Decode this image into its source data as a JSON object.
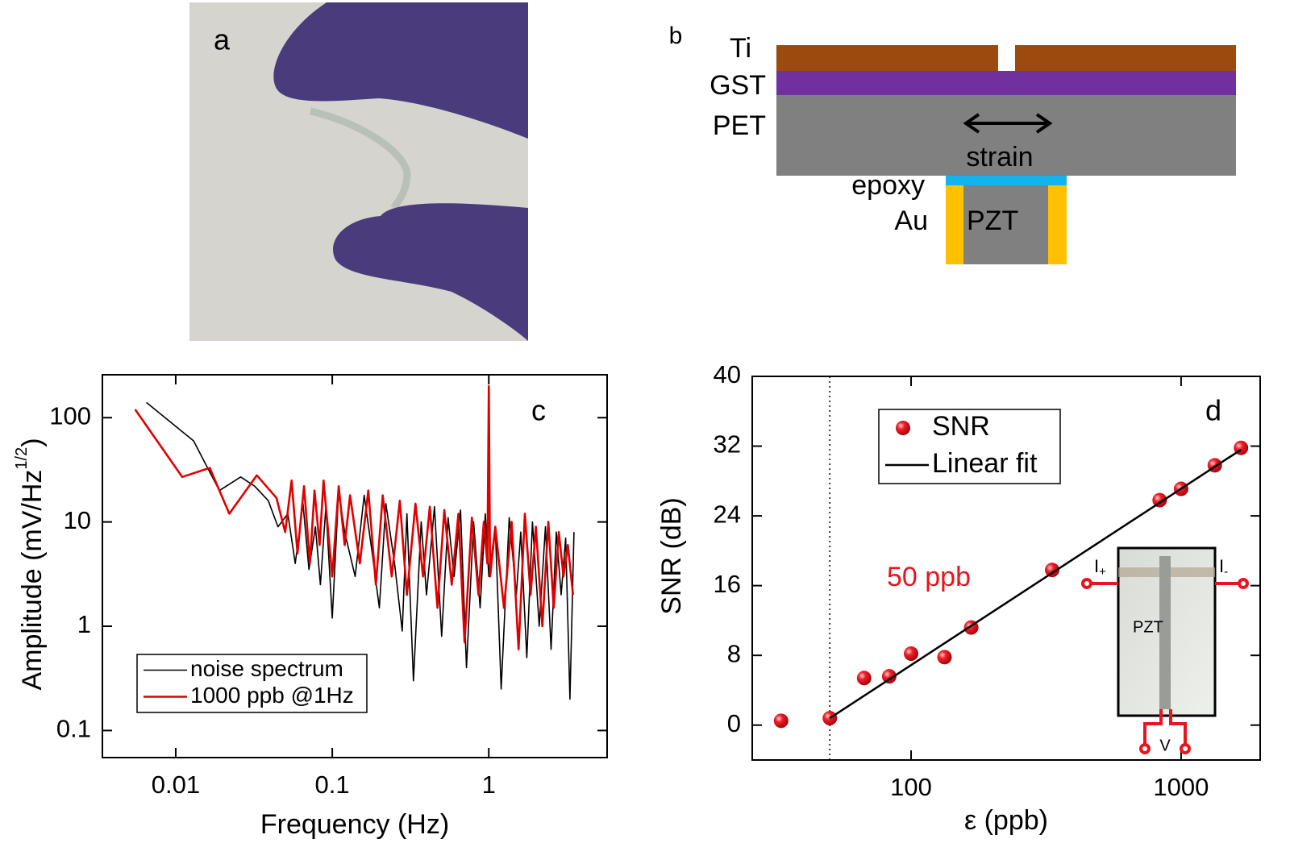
{
  "photo": {
    "label": "a"
  },
  "diagram": {
    "label": "b",
    "layers": [
      "Ti",
      "GST",
      "PET"
    ],
    "bond": "epoxy",
    "electrode": "Au",
    "piezo": "PZT",
    "arrow": "strain"
  },
  "chart_data": [
    {
      "type": "line",
      "annotation": "c",
      "xlabel": "Frequency (Hz)",
      "ylabel": {
        "text": "Amplitude (mV/Hz",
        "superscript": "1/2",
        "suffix": ")"
      },
      "xscale": "log",
      "yscale": "log",
      "xlim": [
        0.0034,
        5.7
      ],
      "ylim": [
        0.055,
        258
      ],
      "xticks": [
        0.01,
        0.1,
        1
      ],
      "yticks": [
        0.1,
        1,
        10,
        100
      ],
      "legend": "lower left",
      "series": [
        {
          "name": "noise spectrum",
          "color": "#000000",
          "x": [
            0.0065,
            0.013,
            0.019,
            0.026,
            0.032,
            0.039,
            0.045,
            0.052,
            0.058,
            0.065,
            0.071,
            0.078,
            0.084,
            0.091,
            0.1,
            0.11,
            0.12,
            0.14,
            0.16,
            0.18,
            0.2,
            0.22,
            0.25,
            0.28,
            0.3,
            0.33,
            0.37,
            0.4,
            0.45,
            0.5,
            0.55,
            0.6,
            0.66,
            0.72,
            0.8,
            0.88,
            0.95,
            1.0,
            1.1,
            1.2,
            1.35,
            1.5,
            1.6,
            1.75,
            1.9,
            2.1,
            2.3,
            2.5,
            2.7,
            2.9,
            3.1,
            3.3,
            3.5
          ],
          "values": [
            140,
            60,
            20,
            27,
            22,
            16,
            9,
            12,
            4,
            15,
            3.5,
            9,
            2.5,
            14,
            1.2,
            20,
            8,
            3,
            18,
            5,
            1.5,
            15,
            4,
            0.9,
            12,
            0.3,
            10,
            2,
            14,
            0.8,
            11,
            3,
            13,
            0.4,
            10,
            1.5,
            12,
            3,
            9,
            0.25,
            11,
            2,
            8,
            0.5,
            10,
            1,
            9,
            0.6,
            8,
            2,
            7,
            0.2,
            8
          ]
        },
        {
          "name": "1000 ppb @1Hz",
          "color": "#e00000",
          "x": [
            0.0055,
            0.011,
            0.0165,
            0.022,
            0.033,
            0.044,
            0.05,
            0.055,
            0.06,
            0.066,
            0.072,
            0.077,
            0.083,
            0.088,
            0.1,
            0.11,
            0.12,
            0.13,
            0.15,
            0.17,
            0.19,
            0.21,
            0.24,
            0.27,
            0.3,
            0.34,
            0.38,
            0.42,
            0.47,
            0.52,
            0.58,
            0.64,
            0.7,
            0.78,
            0.86,
            0.93,
            0.98,
            1.0,
            1.02,
            1.1,
            1.25,
            1.4,
            1.55,
            1.7,
            1.85,
            2.0,
            2.2,
            2.4,
            2.6,
            2.8,
            3.0,
            3.2,
            3.45
          ],
          "values": [
            120,
            27,
            33,
            12,
            28,
            17,
            8,
            25,
            5,
            22,
            4,
            20,
            6,
            25,
            3,
            22,
            6,
            18,
            4,
            20,
            2.5,
            18,
            3,
            16,
            2,
            15,
            3,
            14,
            1.5,
            13,
            2.5,
            12,
            0.7,
            11,
            2,
            10,
            4,
            200,
            3,
            9,
            1.5,
            10,
            0.6,
            12,
            2,
            9,
            1,
            10,
            1.5,
            8,
            3,
            6,
            2
          ]
        }
      ]
    },
    {
      "type": "scatter",
      "annotation": "d",
      "xlabel": "ε (ppb)",
      "ylabel": "SNR (dB)",
      "xscale": "log",
      "yscale": "linear",
      "xlim": [
        25.8,
        1963
      ],
      "ylim": [
        -4,
        40
      ],
      "xticks": [
        100,
        1000
      ],
      "yticks": [
        0,
        8,
        16,
        24,
        32,
        40
      ],
      "legend": "upper left",
      "vline": 50,
      "vline_label": "50 ppb",
      "series": [
        {
          "name": "SNR",
          "type": "scatter",
          "color": "#e8141e",
          "x": [
            33,
            50,
            67,
            83,
            100,
            133,
            167,
            333,
            833,
            1000,
            1333,
            1667
          ],
          "values": [
            0.5,
            0.8,
            5.4,
            5.6,
            8.2,
            7.8,
            11.2,
            17.8,
            25.8,
            27.1,
            29.8,
            31.8
          ]
        },
        {
          "name": "Linear fit",
          "type": "line",
          "color": "#000000",
          "x": [
            50,
            1667
          ],
          "values": [
            0.8,
            31.6
          ]
        }
      ],
      "inset": {
        "material": "PZT",
        "voltage": "V",
        "current_in": {
          "text": "I",
          "sub": "+"
        },
        "current_out": {
          "text": "I",
          "sub": "-"
        }
      }
    }
  ]
}
